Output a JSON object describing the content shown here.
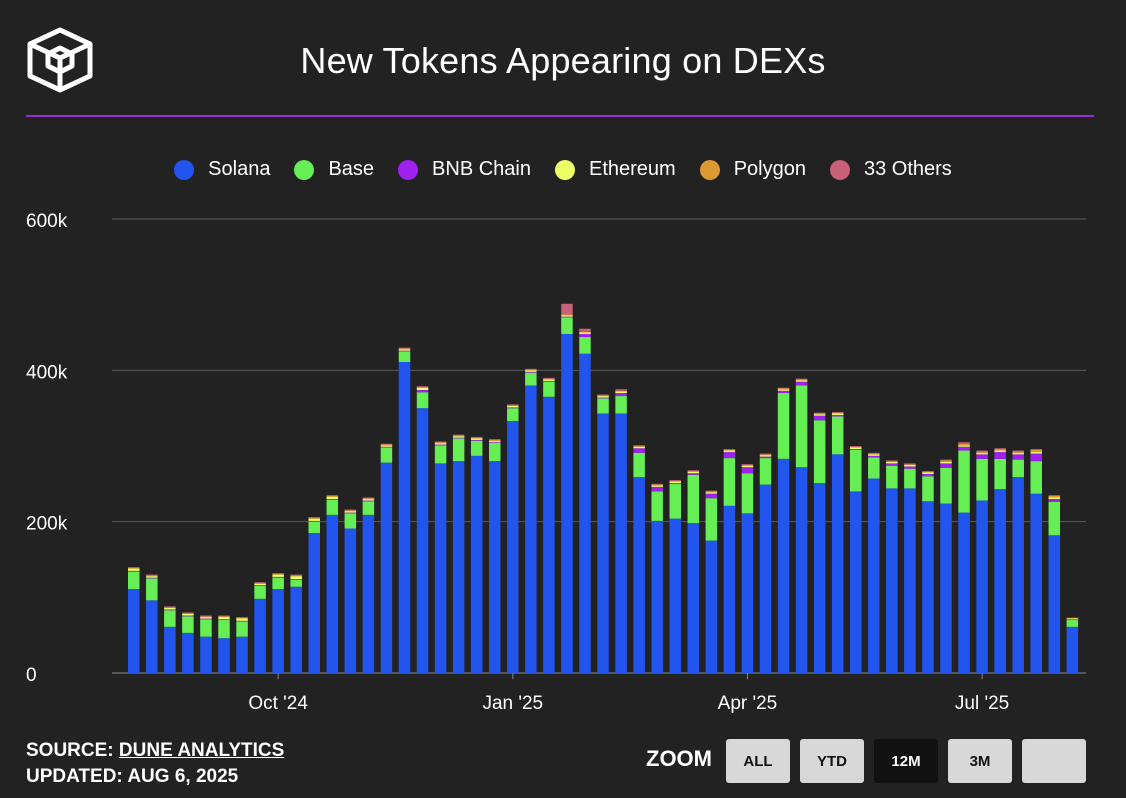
{
  "title": "New Tokens Appearing on DEXs",
  "source": {
    "label": "SOURCE:",
    "link": "DUNE ANALYTICS",
    "updated": "UPDATED: AUG 6, 2025"
  },
  "zoom": {
    "label": "ZOOM",
    "buttons": [
      {
        "label": "ALL",
        "active": false
      },
      {
        "label": "YTD",
        "active": false
      },
      {
        "label": "12M",
        "active": true
      },
      {
        "label": "3M",
        "active": false
      },
      {
        "label": "",
        "active": false
      }
    ]
  },
  "colors": {
    "background": "#222222",
    "divider": "#9b2bd6",
    "grid": "#5a5a5a",
    "text": "#ffffff"
  },
  "chart_data": {
    "type": "bar",
    "stacked": true,
    "title": "New Tokens Appearing on DEXs",
    "xlabel": "",
    "ylabel": "",
    "ylim": [
      0,
      600000
    ],
    "yticks": [
      {
        "value": 0,
        "label": "0"
      },
      {
        "value": 200000,
        "label": "200k"
      },
      {
        "value": 400000,
        "label": "400k"
      },
      {
        "value": 600000,
        "label": "600k"
      }
    ],
    "xticks": [
      {
        "index": 8,
        "label": "Oct '24"
      },
      {
        "index": 21,
        "label": "Jan '25"
      },
      {
        "index": 34,
        "label": "Apr '25"
      },
      {
        "index": 47,
        "label": "Jul '25"
      }
    ],
    "legend_position": "top",
    "grid": true,
    "series": [
      {
        "name": "Solana",
        "color": "#2255ee",
        "values": [
          111000,
          96000,
          61000,
          53000,
          48000,
          46000,
          48000,
          98000,
          111000,
          114000,
          185000,
          209000,
          191000,
          209000,
          278000,
          411000,
          350000,
          277000,
          280000,
          287000,
          280000,
          333000,
          380000,
          365000,
          448000,
          422000,
          343000,
          343000,
          259000,
          201000,
          204000,
          198000,
          175000,
          221000,
          211000,
          249000,
          283000,
          272000,
          251000,
          289000,
          240000,
          257000,
          244000,
          244000,
          227000,
          224000,
          212000,
          228000,
          243000,
          259000,
          237000,
          182000,
          61000
        ]
      },
      {
        "name": "Base",
        "color": "#66ee55",
        "values": [
          23000,
          29000,
          22000,
          22000,
          23000,
          24000,
          20000,
          17000,
          15000,
          9000,
          15000,
          20000,
          20000,
          18000,
          20000,
          14000,
          21000,
          24000,
          30000,
          20000,
          24000,
          17000,
          17000,
          20000,
          22000,
          22000,
          20000,
          23000,
          32000,
          39000,
          46000,
          64000,
          56000,
          63000,
          53000,
          35000,
          87000,
          108000,
          83000,
          50000,
          55000,
          28000,
          30000,
          26000,
          33000,
          47000,
          82000,
          55000,
          40000,
          23000,
          43000,
          44000,
          9000
        ]
      },
      {
        "name": "BNB Chain",
        "color": "#a020f0",
        "values": [
          1000,
          1000,
          1000,
          1000,
          1000,
          1000,
          1000,
          1000,
          1000,
          1000,
          1000,
          1000,
          1000,
          1000,
          1000,
          1000,
          3000,
          1000,
          1000,
          1000,
          1000,
          1000,
          1000,
          1000,
          1000,
          4000,
          1000,
          4000,
          6000,
          6000,
          1000,
          2000,
          6000,
          8000,
          8000,
          2000,
          3000,
          5000,
          6000,
          2000,
          1000,
          2000,
          3000,
          3000,
          3000,
          6000,
          5000,
          6000,
          9000,
          7000,
          10000,
          4000,
          1000
        ]
      },
      {
        "name": "Ethereum",
        "color": "#eeff66",
        "values": [
          3000,
          2000,
          2000,
          2000,
          2000,
          3000,
          3000,
          2000,
          3000,
          4000,
          3000,
          3000,
          2000,
          2000,
          2000,
          2000,
          3000,
          2000,
          2000,
          2000,
          2000,
          2000,
          2000,
          2000,
          2000,
          2000,
          2000,
          2000,
          2000,
          2000,
          2000,
          2000,
          2000,
          2000,
          2000,
          2000,
          2000,
          2000,
          2000,
          2000,
          2000,
          2000,
          2000,
          2000,
          2000,
          2000,
          2000,
          2000,
          2000,
          2000,
          2000,
          2000,
          1000
        ]
      },
      {
        "name": "Polygon",
        "color": "#dd9933",
        "values": [
          1000,
          1000,
          1000,
          1000,
          1000,
          1000,
          1000,
          1000,
          1000,
          1000,
          1000,
          1000,
          1000,
          1000,
          1000,
          1000,
          1000,
          1000,
          1000,
          1000,
          1000,
          1000,
          1000,
          1000,
          1000,
          1000,
          1000,
          1000,
          1000,
          1000,
          1000,
          1000,
          1000,
          1000,
          1000,
          1000,
          1000,
          1000,
          1000,
          1000,
          1000,
          1000,
          1000,
          1000,
          1000,
          2000,
          2000,
          2000,
          2000,
          2000,
          3000,
          2000,
          1000
        ]
      },
      {
        "name": "33 Others",
        "color": "#c8607a",
        "values": [
          1000,
          1000,
          1000,
          1000,
          1000,
          1000,
          1000,
          1000,
          1000,
          1000,
          1000,
          1000,
          1000,
          1000,
          1000,
          1000,
          1000,
          1000,
          1000,
          1000,
          1000,
          1000,
          1000,
          1000,
          14000,
          4000,
          1000,
          2000,
          1000,
          1000,
          1000,
          1000,
          1000,
          1000,
          1000,
          1000,
          1000,
          1000,
          1000,
          1000,
          1000,
          1000,
          1000,
          1000,
          1000,
          1000,
          2000,
          1000,
          1000,
          1000,
          1000,
          1000,
          0
        ]
      }
    ]
  }
}
